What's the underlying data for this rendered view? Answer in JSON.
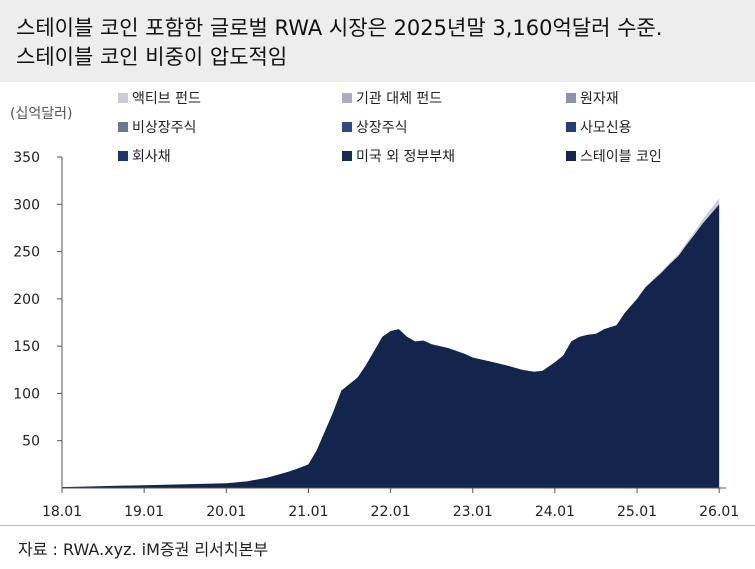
{
  "header": {
    "title_line1": "스테이블 코인 포함한 글로벌 RWA 시장은 2025년말 3,160억달러 수준.",
    "title_line2": "스테이블 코인 비중이 압도적임"
  },
  "source": "자료 : RWA.xyz. iM증권 리서치본부",
  "chart_data": {
    "type": "area",
    "stacked": true,
    "ylabel": "(십억달러)",
    "ylim": [
      0,
      350
    ],
    "yticks": [
      50,
      100,
      150,
      200,
      250,
      300,
      350
    ],
    "xlim": [
      2018.0,
      2026.083
    ],
    "xticks": [
      {
        "label": "18.01",
        "value": 2018.0
      },
      {
        "label": "19.01",
        "value": 2019.0
      },
      {
        "label": "20.01",
        "value": 2020.0
      },
      {
        "label": "21.01",
        "value": 2021.0
      },
      {
        "label": "22.01",
        "value": 2022.0
      },
      {
        "label": "23.01",
        "value": 2023.0
      },
      {
        "label": "24.01",
        "value": 2024.0
      },
      {
        "label": "25.01",
        "value": 2025.0
      },
      {
        "label": "26.01",
        "value": 2026.0
      }
    ],
    "grid": false,
    "legend_position": "top",
    "legend": [
      {
        "name": "액티브 펀드",
        "color": "#c9ccd6"
      },
      {
        "name": "기관 대체 펀드",
        "color": "#a9aec0"
      },
      {
        "name": "원자재",
        "color": "#8a91a8"
      },
      {
        "name": "비상장주식",
        "color": "#6c7796"
      },
      {
        "name": "상장주식",
        "color": "#2c4a8c"
      },
      {
        "name": "사모신용",
        "color": "#233f78"
      },
      {
        "name": "회사채",
        "color": "#1d3466"
      },
      {
        "name": "미국 외 정부부채",
        "color": "#182c58"
      },
      {
        "name": "스테이블 코인",
        "color": "#13254c"
      }
    ],
    "x": [
      2018.0,
      2018.5,
      2019.0,
      2019.5,
      2020.0,
      2020.25,
      2020.5,
      2020.75,
      2020.85,
      2021.0,
      2021.1,
      2021.2,
      2021.3,
      2021.4,
      2021.5,
      2021.6,
      2021.7,
      2021.8,
      2021.9,
      2022.0,
      2022.1,
      2022.2,
      2022.3,
      2022.4,
      2022.5,
      2022.6,
      2022.7,
      2022.8,
      2022.9,
      2023.0,
      2023.2,
      2023.4,
      2023.6,
      2023.75,
      2023.85,
      2024.0,
      2024.1,
      2024.2,
      2024.3,
      2024.4,
      2024.5,
      2024.6,
      2024.75,
      2024.85,
      2025.0,
      2025.1,
      2025.2,
      2025.3,
      2025.4,
      2025.5,
      2025.6,
      2025.7,
      2025.8,
      2025.9,
      2025.95,
      2026.0
    ],
    "series": [
      {
        "name": "스테이블 코인",
        "values": [
          1,
          2,
          3,
          4,
          5,
          7,
          11,
          17,
          20,
          25,
          40,
          60,
          80,
          103,
          110,
          117,
          130,
          145,
          160,
          166,
          168,
          160,
          155,
          156,
          152,
          150,
          148,
          145,
          142,
          138,
          134,
          130,
          125,
          123,
          124,
          133,
          140,
          155,
          160,
          162,
          163,
          168,
          172,
          185,
          200,
          212,
          220,
          228,
          237,
          245,
          257,
          268,
          280,
          290,
          295,
          300
        ]
      },
      {
        "name": "액티브 펀드",
        "values": [
          0,
          0,
          0,
          0,
          0,
          0,
          0,
          0,
          0,
          0,
          0,
          0,
          0,
          0,
          0,
          0,
          0,
          0,
          0,
          0,
          0,
          0,
          0,
          0,
          0,
          0,
          0,
          0,
          0,
          0,
          0,
          0,
          0,
          0,
          0,
          0,
          0,
          0,
          0,
          0,
          0,
          0,
          0,
          0,
          0.5,
          0.5,
          1,
          1,
          1.5,
          2,
          2.5,
          3,
          4,
          5,
          6,
          6
        ]
      }
    ]
  }
}
